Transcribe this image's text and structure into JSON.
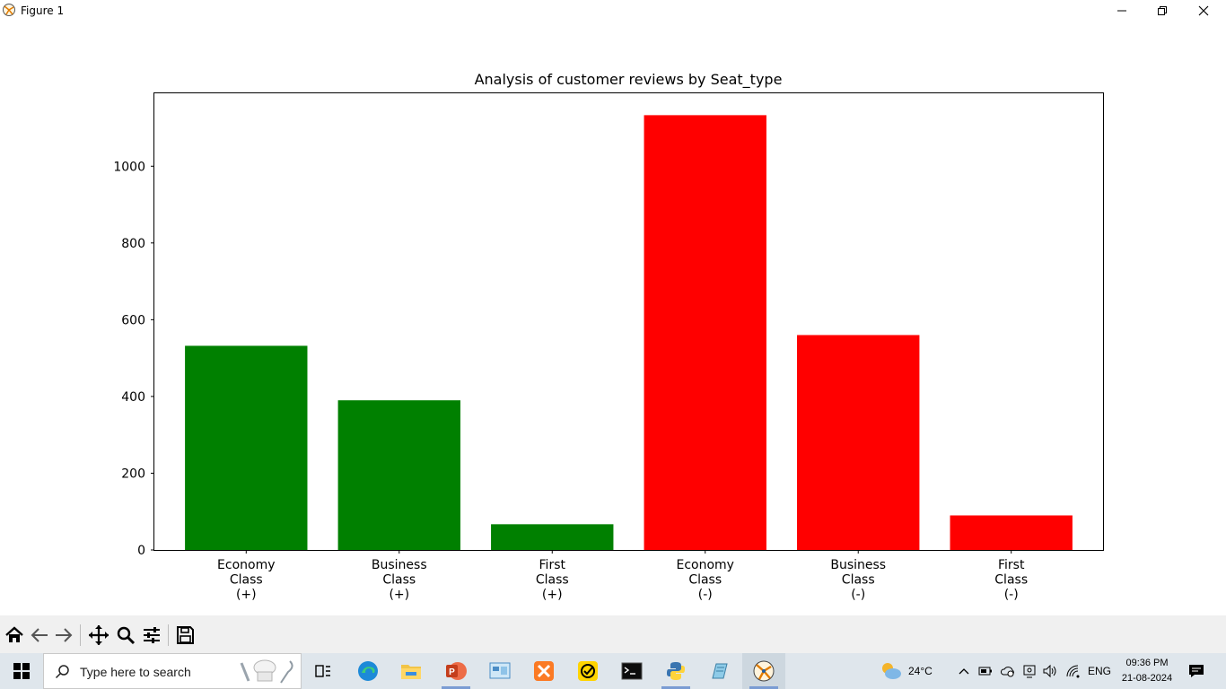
{
  "window": {
    "title": "Figure 1",
    "controls": {
      "minimize": "minimize-icon",
      "maximize": "restore-icon",
      "close": "close-icon"
    }
  },
  "chart_data": {
    "type": "bar",
    "title": "Analysis of customer reviews by Seat_type",
    "xlabel": "",
    "ylabel": "",
    "categories": [
      [
        "Economy",
        "Class",
        "(+)"
      ],
      [
        "Business",
        "Class",
        "(+)"
      ],
      [
        "First",
        "Class",
        "(+)"
      ],
      [
        "Economy",
        "Class",
        "(-)"
      ],
      [
        "Business",
        "Class",
        "(-)"
      ],
      [
        "First",
        "Class",
        "(-)"
      ]
    ],
    "values": [
      532,
      390,
      67,
      1133,
      560,
      90
    ],
    "colors": [
      "#008000",
      "#008000",
      "#008000",
      "#ff0000",
      "#ff0000",
      "#ff0000"
    ],
    "yticks": [
      0,
      200,
      400,
      600,
      800,
      1000
    ],
    "ylim": [
      0,
      1190
    ],
    "grid": false,
    "legend": "none"
  },
  "toolbar": {
    "buttons": [
      "home-icon",
      "back-icon",
      "forward-icon",
      "pan-icon",
      "zoom-icon",
      "configure-subplots-icon",
      "save-icon"
    ]
  },
  "taskbar": {
    "search_placeholder": "Type here to search",
    "apps": [
      "task-view-icon",
      "edge-icon",
      "file-explorer-icon",
      "powerpoint-icon",
      "control-panel-icon",
      "xampp-icon",
      "norton-icon",
      "terminal-icon",
      "python-icon",
      "notepad-icon",
      "matplotlib-figure-icon"
    ],
    "weather": "24°C",
    "language": "ENG",
    "time": "09:36 PM",
    "date": "21-08-2024"
  },
  "colors": {
    "positive": "#008000",
    "negative": "#ff0000",
    "toolbar_bg": "#f0f0f0",
    "taskbar_bg": "#dfe6ec"
  }
}
